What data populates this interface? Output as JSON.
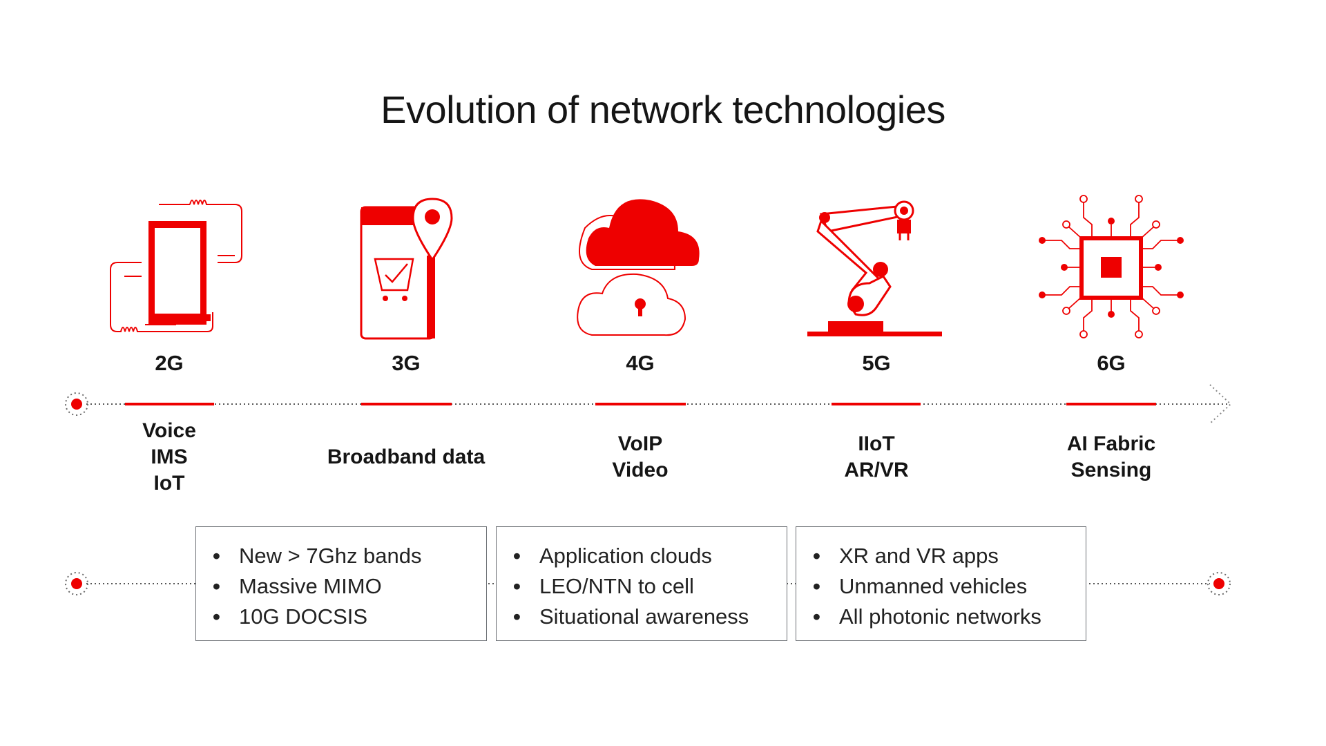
{
  "title": "Evolution of network technologies",
  "accent_color": "#ee0000",
  "generations": [
    {
      "label": "2G",
      "icon": "phone-signal-icon",
      "features": [
        "Voice",
        "IMS",
        "IoT"
      ]
    },
    {
      "label": "3G",
      "icon": "phone-shopping-cart-location-icon",
      "features": [
        "Broadband data"
      ]
    },
    {
      "label": "4G",
      "icon": "cloud-lock-icon",
      "features": [
        "VoIP",
        "Video"
      ]
    },
    {
      "label": "5G",
      "icon": "robot-arm-icon",
      "features": [
        "IIoT",
        "AR/VR"
      ]
    },
    {
      "label": "6G",
      "icon": "chip-icon",
      "features": [
        "AI Fabric",
        "Sensing"
      ]
    }
  ],
  "boxes": [
    {
      "items": [
        "New > 7Ghz bands",
        "Massive MIMO",
        "10G DOCSIS"
      ]
    },
    {
      "items": [
        "Application clouds",
        "LEO/NTN to cell",
        "Situational awareness"
      ]
    },
    {
      "items": [
        "XR and VR apps",
        "Unmanned vehicles",
        "All photonic networks"
      ]
    }
  ]
}
